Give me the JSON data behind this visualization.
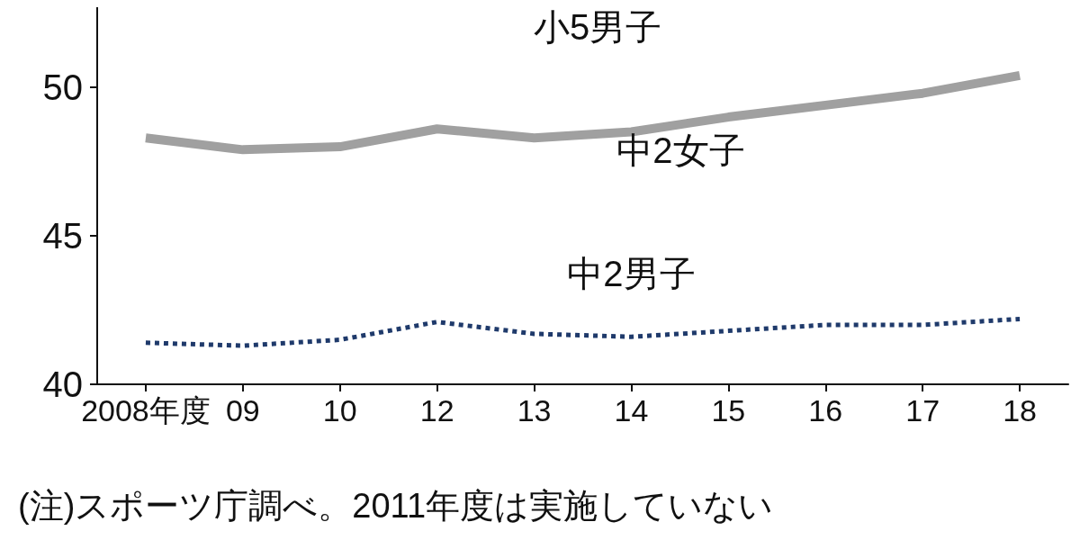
{
  "chart_data": {
    "type": "line",
    "categories": [
      "2008年度",
      "09",
      "10",
      "12",
      "13",
      "14",
      "15",
      "16",
      "17",
      "18"
    ],
    "series": [
      {
        "name": "中2女子",
        "color": "#a0a0a0",
        "values": [
          48.3,
          47.9,
          48.0,
          48.6,
          48.3,
          48.5,
          49.0,
          49.4,
          49.8,
          50.4
        ],
        "line_style": "solid"
      },
      {
        "name": "中2男子",
        "color": "#1f3a6b",
        "values": [
          41.4,
          41.3,
          41.5,
          42.1,
          41.7,
          41.6,
          41.8,
          42.0,
          42.0,
          42.2
        ],
        "line_style": "dotted"
      }
    ],
    "ylim": [
      40,
      52.7
    ],
    "yticks": [
      40,
      45,
      50
    ],
    "grid": false,
    "legend": false,
    "marker": "none",
    "annotations": [
      "小5男子",
      "(注)スポーツ庁調べ。2011年度は実施していない"
    ]
  }
}
